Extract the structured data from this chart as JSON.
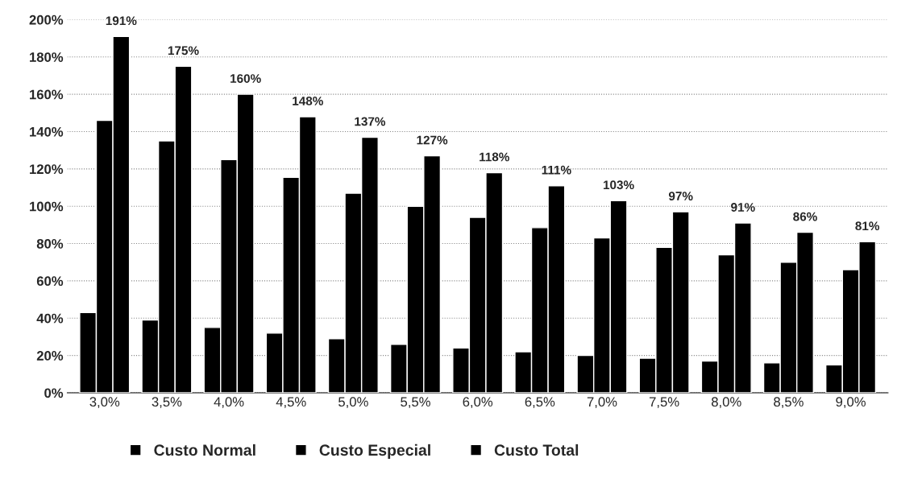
{
  "chart_data": {
    "type": "bar",
    "categories": [
      "3,0%",
      "3,5%",
      "4,0%",
      "4,5%",
      "5,0%",
      "5,5%",
      "6,0%",
      "6,5%",
      "7,0%",
      "7,5%",
      "8,0%",
      "8,5%",
      "9,0%"
    ],
    "series": [
      {
        "name": "Custo Normal",
        "color": "#000000",
        "values": [
          43,
          39,
          35,
          32,
          29,
          26,
          24,
          22,
          20,
          18.5,
          17,
          16,
          15
        ]
      },
      {
        "name": "Custo Especial",
        "color": "#000000",
        "values": [
          146,
          135,
          125,
          115.5,
          107,
          100,
          94,
          88.5,
          83,
          78,
          74,
          70,
          66
        ]
      },
      {
        "name": "Custo Total",
        "color": "#000000",
        "values": [
          191,
          175,
          160,
          148,
          137,
          127,
          118,
          111,
          103,
          97,
          91,
          86,
          81
        ],
        "value_labels": [
          "191%",
          "175%",
          "160%",
          "148%",
          "137%",
          "127%",
          "118%",
          "111%",
          "103%",
          "97%",
          "91%",
          "86%",
          "81%"
        ]
      }
    ],
    "ylim": [
      0,
      200
    ],
    "yticks": [
      {
        "value": 0,
        "label": "0%"
      },
      {
        "value": 20,
        "label": "20%"
      },
      {
        "value": 40,
        "label": "40%"
      },
      {
        "value": 60,
        "label": "60%"
      },
      {
        "value": 80,
        "label": "80%"
      },
      {
        "value": 100,
        "label": "100%"
      },
      {
        "value": 120,
        "label": "120%"
      },
      {
        "value": 140,
        "label": "140%"
      },
      {
        "value": 160,
        "label": "160%"
      },
      {
        "value": 180,
        "label": "180%"
      },
      {
        "value": 200,
        "label": "200%"
      }
    ],
    "grid": "y",
    "legend": "bottom"
  }
}
